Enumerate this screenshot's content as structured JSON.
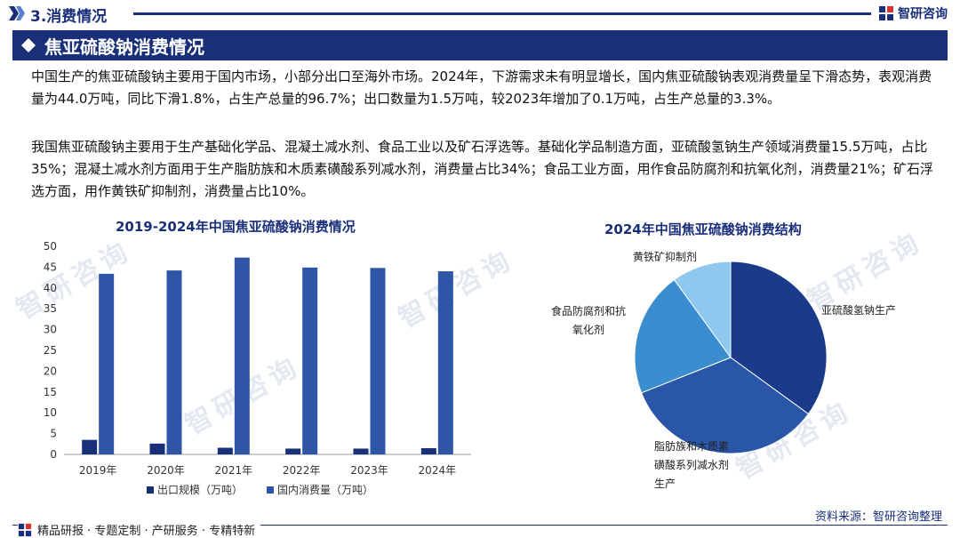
{
  "header": {
    "section": "3.消费情况",
    "brand": "智研咨询"
  },
  "banner": {
    "title": "焦亚硫酸钠消费情况"
  },
  "paragraphs": {
    "p1": "中国生产的焦亚硫酸钠主要用于国内市场，小部分出口至海外市场。2024年，下游需求未有明显增长，国内焦亚硫酸钠表观消费量呈下滑态势，表观消费量为44.0万吨，同比下滑1.8%，占生产总量的96.7%；出口数量为1.5万吨，较2023年增加了0.1万吨，占生产总量的3.3%。",
    "p2": "我国焦亚硫酸钠主要用于生产基础化学品、混凝土减水剂、食品工业以及矿石浮选等。基础化学品制造方面，亚硫酸氢钠生产领域消费量15.5万吨，占比35%；混凝土减水剂方面用于生产脂肪族和木质素磺酸系列减水剂，消费量占比34%；食品工业方面，用作食品防腐剂和抗氧化剂，消费量21%；矿石浮选方面，用作黄铁矿抑制剂，消费量占比10%。"
  },
  "chart_data": [
    {
      "type": "bar",
      "title": "2019-2024年中国焦亚硫酸钠消费情况",
      "categories": [
        "2019年",
        "2020年",
        "2021年",
        "2022年",
        "2023年",
        "2024年"
      ],
      "series": [
        {
          "name": "出口规模（万吨）",
          "values": [
            3.5,
            2.6,
            1.6,
            1.4,
            1.4,
            1.5
          ],
          "color": "#1a2f7a"
        },
        {
          "name": "国内消费量（万吨）",
          "values": [
            43.4,
            44.2,
            47.3,
            44.9,
            44.8,
            44.0
          ],
          "color": "#2e55a6"
        }
      ],
      "ylim": [
        0,
        50
      ],
      "yticks": [
        "0",
        "5",
        "10",
        "15",
        "20",
        "25",
        "30",
        "35",
        "40",
        "45",
        "50"
      ],
      "legend": "bottom",
      "grid": false
    },
    {
      "type": "pie",
      "title": "2024年中国焦亚硫酸钠消费结构",
      "slices": [
        {
          "label": "亚硫酸氢钠生产",
          "value": 35,
          "color": "#1a3a8a"
        },
        {
          "label": "脂肪族和木质素磺酸系列减水剂生产",
          "value": 34,
          "color": "#2a56a8"
        },
        {
          "label": "食品防腐剂和抗氧化剂",
          "value": 21,
          "color": "#3a8ecf"
        },
        {
          "label": "黄铁矿抑制剂",
          "value": 10,
          "color": "#8ec8ef"
        }
      ]
    }
  ],
  "footer": {
    "services": "精品研报 · 专题定制 · 产研服务 · 专精特新",
    "source": "资料来源：智研咨询整理"
  }
}
